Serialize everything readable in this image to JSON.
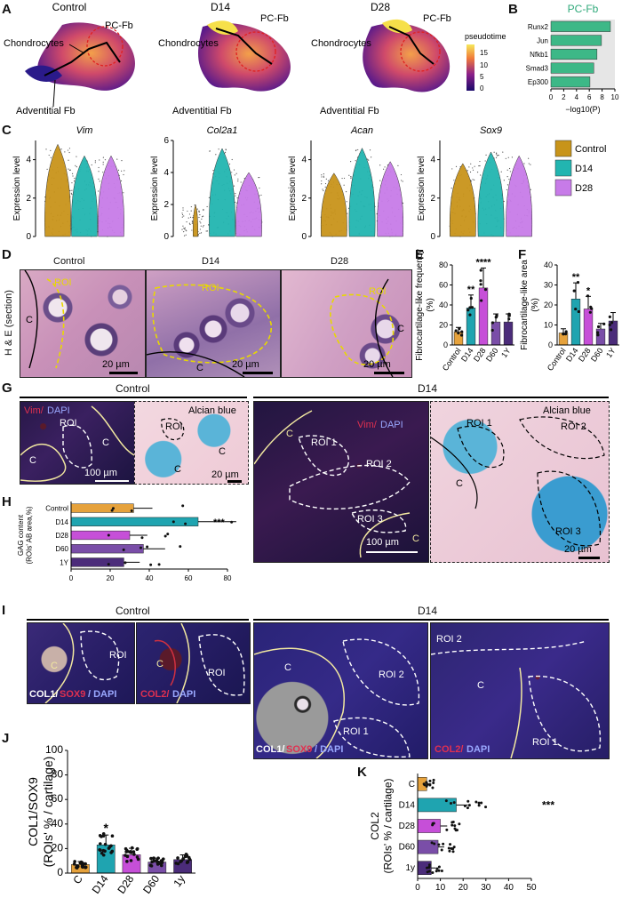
{
  "panel_letters": [
    "A",
    "B",
    "C",
    "D",
    "E",
    "F",
    "G",
    "H",
    "I",
    "J",
    "K"
  ],
  "umap": {
    "panels": [
      {
        "title": "Control",
        "labels": [
          "PC-Fb",
          "Chondrocytes",
          "Adventitial Fb"
        ]
      },
      {
        "title": "D14",
        "labels": [
          "PC-Fb",
          "Chondrocytes",
          "Adventitial Fb"
        ]
      },
      {
        "title": "D28",
        "labels": [
          "PC-Fb",
          "Chondrocytes",
          "Adventitial Fb"
        ]
      }
    ],
    "colorbar_title": "pseudotime",
    "colorbar_ticks": [
      "15",
      "10",
      "5",
      "0"
    ]
  },
  "violin": {
    "genes": [
      "Vim",
      "Col2a1",
      "Acan",
      "Sox9"
    ],
    "ylabel": "Expression level",
    "legend": [
      "Control",
      "D14",
      "D28"
    ],
    "colors": [
      "#c8941a",
      "#22b5b0",
      "#c77be8"
    ]
  },
  "he": {
    "titles": [
      "Control",
      "D14",
      "D28"
    ],
    "side_label": "H & E (section)",
    "roi": "ROI",
    "c": "C",
    "scale": "20 µm"
  },
  "g": {
    "control_title": "Control",
    "d14_title": "D14",
    "stain_vim": "Vim/",
    "stain_dapi": " DAPI",
    "alcian": "Alcian blue",
    "roi": "ROI",
    "roi1": "ROI 1",
    "roi2": "ROI 2",
    "roi3": "ROI 3",
    "c": "C",
    "scale100": "100 µm",
    "scale20": "20 µm"
  },
  "i": {
    "control_title": "Control",
    "d14_title": "D14",
    "col1": "COL1/",
    "sox9": " SOX9",
    "dapi": "/ DAPI",
    "col2": "COL2/",
    "dapi2": " DAPI",
    "roi": "ROI",
    "roi1": "ROI 1",
    "roi2": "ROI 2",
    "c": "C"
  },
  "chart_data": [
    {
      "id": "B",
      "type": "bar",
      "title": "PC-Fb",
      "categories": [
        "Runx2",
        "Jun",
        "Nfkb1",
        "Smad3",
        "Ep300"
      ],
      "values": [
        9.3,
        7.9,
        7.2,
        6.7,
        6.1
      ],
      "xlabel": "−log10(P)",
      "xlim": [
        0,
        10
      ],
      "xticks": [
        "0",
        "2",
        "4",
        "6",
        "8",
        "10"
      ],
      "color": "#3db887"
    },
    {
      "id": "E",
      "type": "bar",
      "categories": [
        "Control",
        "D14",
        "D28",
        "D60",
        "1Y"
      ],
      "values": [
        13,
        37,
        57,
        23,
        23
      ],
      "ylabel": "Fibrocartilage-like frequency (%)",
      "ylim": [
        0,
        80
      ],
      "yticks": [
        "0",
        "20",
        "40",
        "60",
        "80"
      ],
      "significance": [
        "",
        "**",
        "****",
        "",
        ""
      ]
    },
    {
      "id": "F",
      "type": "bar",
      "categories": [
        "Control",
        "D14",
        "D28",
        "D60",
        "1Y"
      ],
      "values": [
        6,
        23,
        18,
        8,
        12
      ],
      "ylabel": "Fibrocartilage-like area (%)",
      "ylim": [
        0,
        40
      ],
      "yticks": [
        "0",
        "10",
        "20",
        "30",
        "40"
      ],
      "significance": [
        "",
        "**",
        "*",
        "",
        ""
      ]
    },
    {
      "id": "H",
      "type": "bar",
      "categories": [
        "Control",
        "D14",
        "D28",
        "D60",
        "1Y"
      ],
      "values": [
        32,
        65,
        30,
        37,
        27
      ],
      "xlabel": "GAG content (ROIs' AB area,%)",
      "xlim": [
        0,
        80
      ],
      "xticks": [
        "0",
        "20",
        "40",
        "60",
        "80"
      ],
      "significance": [
        "",
        "***",
        "",
        "",
        ""
      ]
    },
    {
      "id": "J",
      "type": "bar",
      "categories": [
        "C",
        "D14",
        "D28",
        "D60",
        "1y"
      ],
      "values": [
        7,
        23,
        15,
        9,
        11
      ],
      "ylabel": "COL1/SOX9 (ROIs' % / cartilage)",
      "ylim": [
        0,
        100
      ],
      "yticks": [
        "0",
        "20",
        "40",
        "60",
        "80",
        "100"
      ],
      "significance": [
        "",
        "*",
        "",
        "",
        ""
      ]
    },
    {
      "id": "K",
      "type": "bar",
      "categories": [
        "C",
        "D14",
        "D28",
        "D60",
        "1y"
      ],
      "values": [
        4,
        17,
        10,
        9,
        6
      ],
      "xlabel": "COL2 (ROIs' % / cartilage)",
      "xlim": [
        0,
        50
      ],
      "xticks": [
        "0",
        "10",
        "20",
        "30",
        "40",
        "50"
      ],
      "significance": [
        "",
        "***",
        "",
        "",
        ""
      ]
    }
  ]
}
